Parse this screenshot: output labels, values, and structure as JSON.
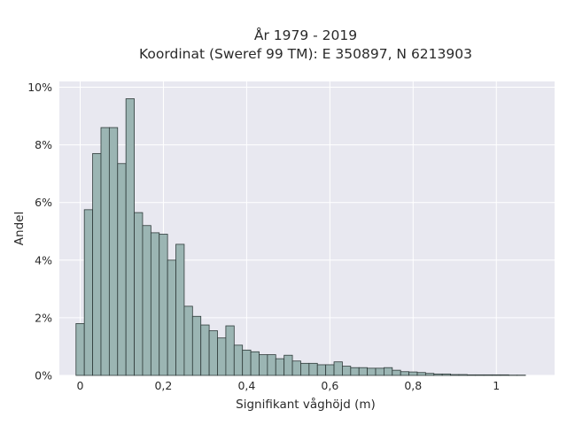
{
  "chart_data": {
    "type": "bar",
    "title_lines": [
      "År 1979 - 2019",
      "Koordinat (Sweref 99 TM): E 350897, N 6213903"
    ],
    "xlabel": "Signifikant våghöjd (m)",
    "ylabel": "Andel",
    "xlim": [
      -0.05,
      1.14
    ],
    "ylim": [
      0,
      10.2
    ],
    "x_ticks": [
      {
        "value": 0,
        "label": "0"
      },
      {
        "value": 0.2,
        "label": "0,2"
      },
      {
        "value": 0.4,
        "label": "0,4"
      },
      {
        "value": 0.6,
        "label": "0,6"
      },
      {
        "value": 0.8,
        "label": "0,8"
      },
      {
        "value": 1.0,
        "label": "1"
      }
    ],
    "y_ticks": [
      {
        "value": 0,
        "label": "0%"
      },
      {
        "value": 2,
        "label": "2%"
      },
      {
        "value": 4,
        "label": "4%"
      },
      {
        "value": 6,
        "label": "6%"
      },
      {
        "value": 8,
        "label": "8%"
      },
      {
        "value": 10,
        "label": "10%"
      }
    ],
    "grid": true,
    "bin_start": -0.01,
    "bin_width": 0.02,
    "values": [
      1.8,
      5.75,
      7.7,
      8.6,
      8.6,
      7.35,
      9.6,
      5.65,
      5.2,
      4.95,
      4.9,
      4.0,
      4.55,
      2.4,
      2.05,
      1.75,
      1.55,
      1.3,
      1.72,
      1.05,
      0.88,
      0.82,
      0.72,
      0.72,
      0.58,
      0.7,
      0.5,
      0.42,
      0.42,
      0.37,
      0.37,
      0.47,
      0.32,
      0.27,
      0.27,
      0.25,
      0.25,
      0.27,
      0.18,
      0.13,
      0.12,
      0.1,
      0.07,
      0.05,
      0.05,
      0.03,
      0.03,
      0.02,
      0.02,
      0.02,
      0.02,
      0.02,
      0.01,
      0.01
    ]
  }
}
